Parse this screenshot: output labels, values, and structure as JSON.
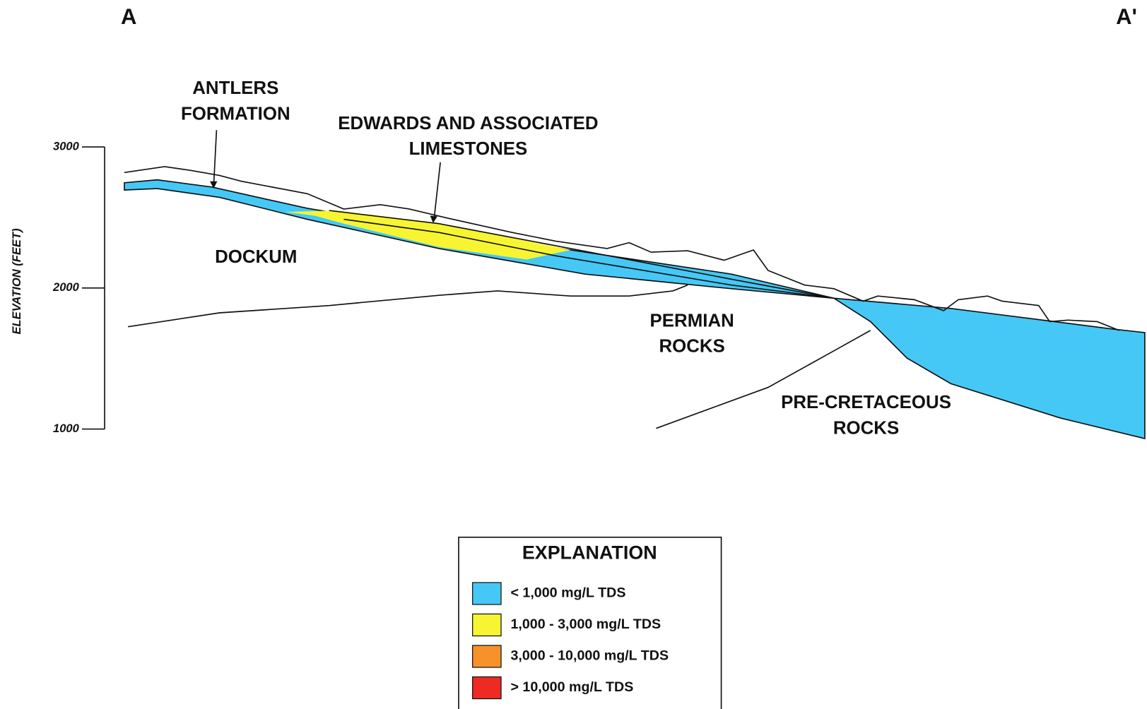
{
  "section": {
    "start": "A",
    "end": "A'"
  },
  "axis": {
    "label": "ELEVATION (FEET)",
    "ticks": [
      3000,
      2000,
      1000
    ]
  },
  "labels": [
    {
      "lines": [
        "ANTLERS",
        "FORMATION"
      ]
    },
    {
      "lines": [
        "EDWARDS AND ASSOCIATED",
        "LIMESTONES"
      ]
    },
    {
      "lines": [
        "DOCKUM"
      ]
    },
    {
      "lines": [
        "PERMIAN",
        "ROCKS"
      ]
    },
    {
      "lines": [
        "PRE-CRETACEOUS",
        "ROCKS"
      ]
    }
  ],
  "legend": {
    "title": "EXPLANATION",
    "items": [
      {
        "label": "< 1,000 mg/L TDS",
        "color": "#45c8f5"
      },
      {
        "label": "1,000  - 3,000 mg/L TDS",
        "color": "#f7f531"
      },
      {
        "label": "3,000 - 10,000 mg/L TDS",
        "color": "#f7922a"
      },
      {
        "label": "> 10,000 mg/L TDS",
        "color": "#ee2a24"
      }
    ]
  }
}
